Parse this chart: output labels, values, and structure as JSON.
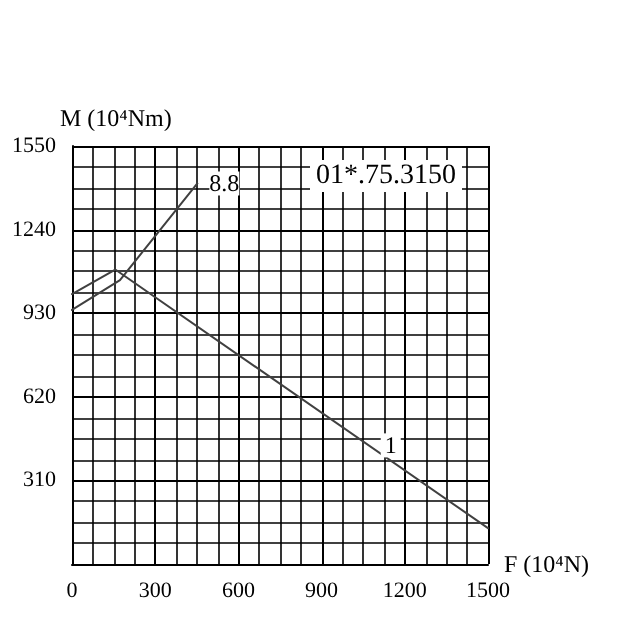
{
  "chart_data": {
    "type": "line",
    "xlabel": "F (10⁴N)",
    "ylabel": "M (10⁴Nm)",
    "annotations": [
      "01*.75.3150"
    ],
    "xlim": [
      0,
      1500
    ],
    "xticks": [
      0,
      300,
      600,
      900,
      1200,
      1500
    ],
    "ylim": [
      0,
      1550
    ],
    "yticks": [
      {
        "value": 0,
        "label": null
      },
      310,
      620,
      930,
      1240,
      1550
    ],
    "grid": true,
    "marker": "none",
    "line_style": "solid",
    "series": [
      {
        "name": "8.8",
        "color": "#404040",
        "x": [
          0,
          173,
          452
        ],
        "values": [
          942,
          1053,
          1411
        ]
      },
      {
        "name": "1",
        "color": "#404040",
        "x": [
          0,
          156,
          1500
        ],
        "values": [
          1001,
          1092,
          133
        ]
      }
    ]
  }
}
